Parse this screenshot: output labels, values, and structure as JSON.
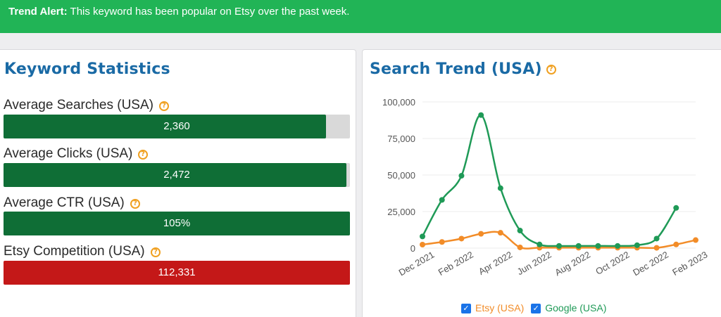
{
  "banner": {
    "label": "Trend Alert:",
    "text": "This keyword has been popular on Etsy over the past week."
  },
  "keyword_stats": {
    "title": "Keyword Statistics",
    "items": [
      {
        "label": "Average Searches (USA)",
        "value": "2,360",
        "fill_fraction": 0.93,
        "color": "#0f6e36"
      },
      {
        "label": "Average Clicks (USA)",
        "value": "2,472",
        "fill_fraction": 0.99,
        "color": "#0f6e36"
      },
      {
        "label": "Average CTR (USA)",
        "value": "105%",
        "fill_fraction": 1.0,
        "color": "#0f6e36"
      },
      {
        "label": "Etsy Competition (USA)",
        "value": "112,331",
        "fill_fraction": 1.0,
        "color": "#c41818"
      }
    ]
  },
  "search_trend": {
    "title": "Search Trend (USA)",
    "legend": {
      "etsy": "Etsy (USA)",
      "google": "Google (USA)"
    }
  },
  "chart_data": {
    "type": "line",
    "title": "Search Trend (USA)",
    "x": [
      "Dec 2021",
      "Jan 2022",
      "Feb 2022",
      "Mar 2022",
      "Apr 2022",
      "May 2022",
      "Jun 2022",
      "Jul 2022",
      "Aug 2022",
      "Sep 2022",
      "Oct 2022",
      "Nov 2022",
      "Dec 2022",
      "Jan 2023",
      "Feb 2023"
    ],
    "x_tick_labels": [
      "Dec 2021",
      "Feb 2022",
      "Apr 2022",
      "Jun 2022",
      "Aug 2022",
      "Oct 2022",
      "Dec 2022",
      "Feb 2023"
    ],
    "y_tick_labels": [
      "100,000",
      "75,000",
      "50,000",
      "25,000",
      "0"
    ],
    "ylim": [
      0,
      100000
    ],
    "grid": true,
    "legend_position": "bottom",
    "series": [
      {
        "name": "Etsy (USA)",
        "color": "#f28c28",
        "values": [
          2400,
          4200,
          6500,
          9800,
          10500,
          500,
          300,
          300,
          300,
          300,
          300,
          300,
          200,
          2500,
          5500
        ]
      },
      {
        "name": "Google (USA)",
        "color": "#1f9a57",
        "values": [
          8000,
          33000,
          49500,
          91000,
          41000,
          12000,
          2500,
          1500,
          1500,
          1500,
          1500,
          2000,
          6500,
          27500,
          null
        ]
      }
    ]
  }
}
